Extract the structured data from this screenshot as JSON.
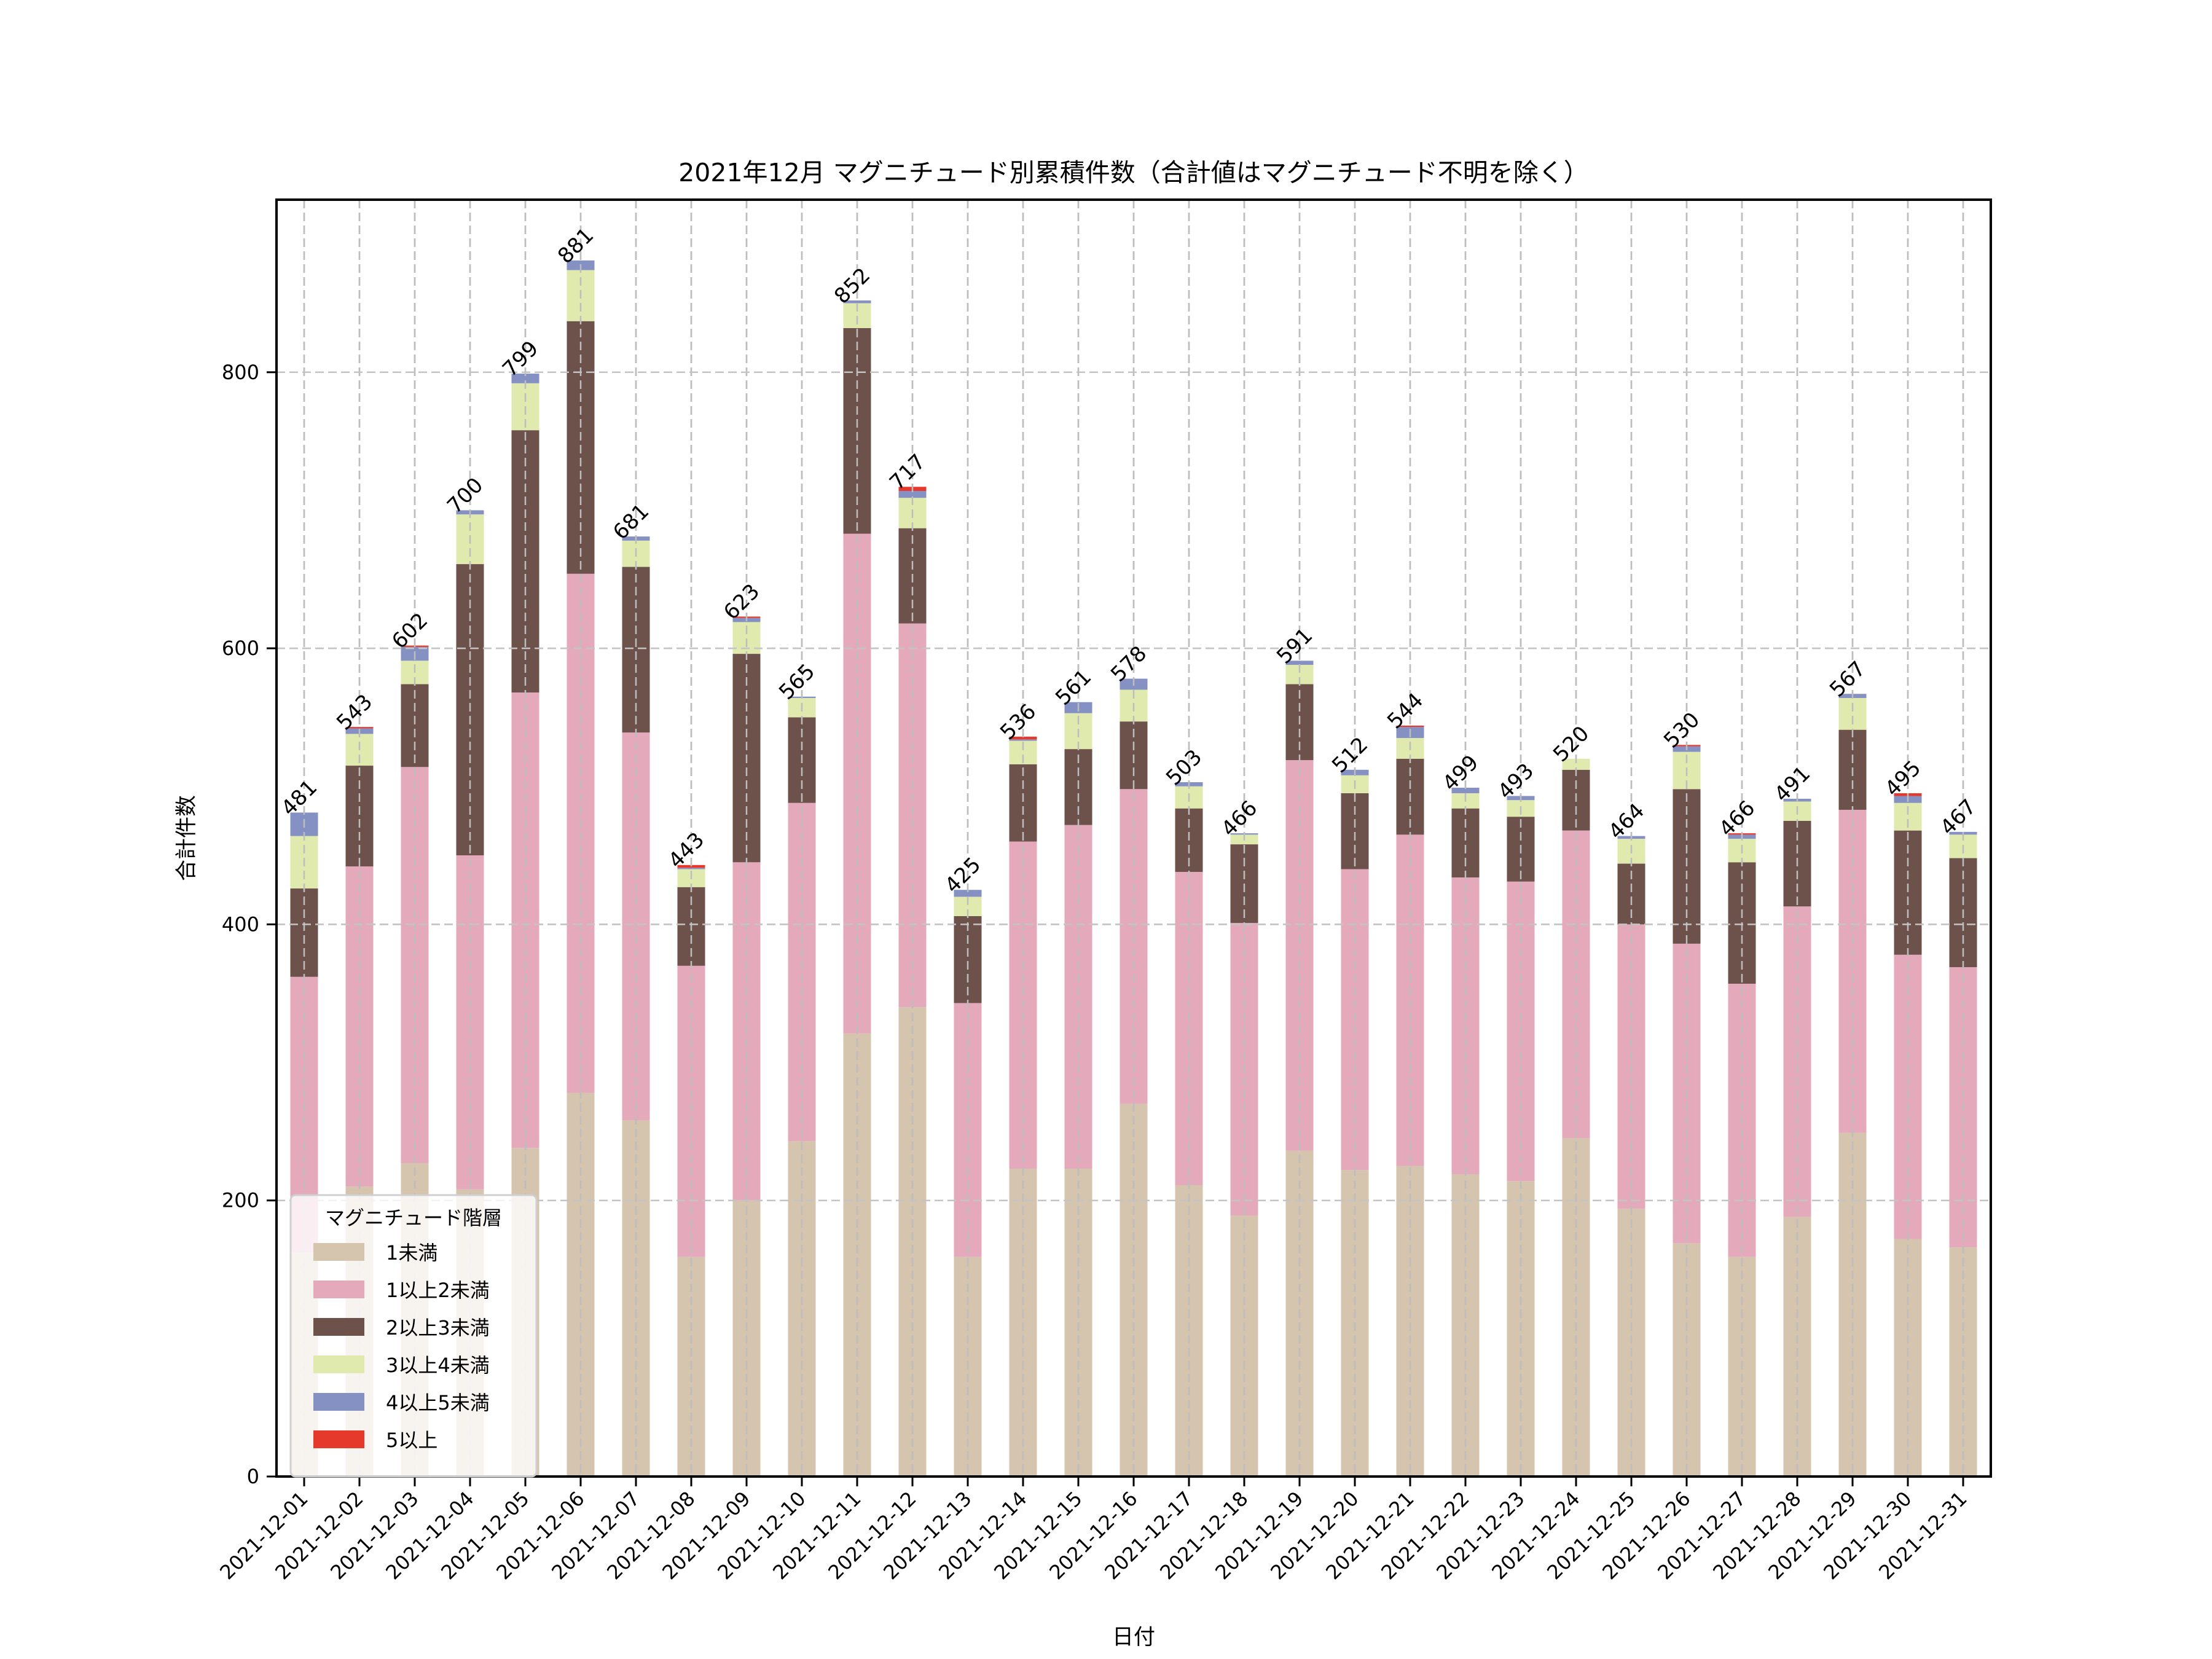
{
  "chart_data": {
    "type": "bar",
    "stacked": true,
    "title": "2021年12月 マグニチュード別累積件数（合計値はマグニチュード不明を除く）",
    "xlabel": "日付",
    "ylabel": "合計件数",
    "ylim": [
      0,
      925
    ],
    "yticks": [
      0,
      200,
      400,
      600,
      800
    ],
    "grid": true,
    "legend": {
      "title": "マグニチュード階層",
      "placement": "lower-left"
    },
    "categories": [
      "2021-12-01",
      "2021-12-02",
      "2021-12-03",
      "2021-12-04",
      "2021-12-05",
      "2021-12-06",
      "2021-12-07",
      "2021-12-08",
      "2021-12-09",
      "2021-12-10",
      "2021-12-11",
      "2021-12-12",
      "2021-12-13",
      "2021-12-14",
      "2021-12-15",
      "2021-12-16",
      "2021-12-17",
      "2021-12-18",
      "2021-12-19",
      "2021-12-20",
      "2021-12-21",
      "2021-12-22",
      "2021-12-23",
      "2021-12-24",
      "2021-12-25",
      "2021-12-26",
      "2021-12-27",
      "2021-12-28",
      "2021-12-29",
      "2021-12-30",
      "2021-12-31"
    ],
    "series": [
      {
        "name": "1未満",
        "color": "#d5c4ae",
        "values": [
          162,
          210,
          227,
          208,
          238,
          278,
          258,
          159,
          200,
          243,
          321,
          340,
          159,
          223,
          223,
          270,
          211,
          189,
          236,
          222,
          225,
          219,
          214,
          245,
          194,
          169,
          159,
          188,
          249,
          172,
          166
        ]
      },
      {
        "name": "1以上2未満",
        "color": "#e4aabc",
        "values": [
          200,
          232,
          287,
          242,
          330,
          376,
          281,
          211,
          245,
          245,
          362,
          278,
          184,
          237,
          249,
          228,
          227,
          212,
          283,
          218,
          240,
          215,
          217,
          223,
          206,
          217,
          198,
          225,
          234,
          206,
          203
        ]
      },
      {
        "name": "2以上3未満",
        "color": "#6d514b",
        "values": [
          64,
          73,
          60,
          211,
          190,
          183,
          120,
          57,
          151,
          62,
          149,
          69,
          63,
          56,
          55,
          49,
          46,
          57,
          55,
          55,
          55,
          50,
          47,
          44,
          44,
          112,
          88,
          62,
          58,
          90,
          79
        ]
      },
      {
        "name": "3以上4未満",
        "color": "#e0eaaf",
        "values": [
          38,
          23,
          17,
          36,
          34,
          37,
          19,
          13,
          23,
          14,
          18,
          22,
          14,
          17,
          26,
          23,
          16,
          7,
          14,
          13,
          15,
          11,
          12,
          8,
          18,
          27,
          17,
          14,
          23,
          20,
          17
        ]
      },
      {
        "name": "4以上5未満",
        "color": "#8591c3",
        "values": [
          17,
          4,
          10,
          3,
          7,
          7,
          3,
          1,
          3,
          1,
          2,
          5,
          5,
          1,
          8,
          8,
          3,
          1,
          3,
          4,
          8,
          4,
          3,
          0,
          2,
          4,
          3,
          2,
          3,
          5,
          2
        ]
      },
      {
        "name": "5以上",
        "color": "#e5392b",
        "values": [
          0,
          1,
          1,
          0,
          0,
          0,
          0,
          2,
          1,
          0,
          0,
          3,
          0,
          2,
          0,
          0,
          0,
          0,
          0,
          0,
          1,
          0,
          0,
          0,
          0,
          1,
          1,
          0,
          0,
          2,
          0
        ]
      }
    ],
    "totals": [
      481,
      543,
      602,
      700,
      799,
      881,
      681,
      443,
      623,
      565,
      852,
      717,
      425,
      536,
      561,
      578,
      503,
      466,
      591,
      512,
      544,
      499,
      493,
      520,
      464,
      530,
      466,
      491,
      567,
      495,
      467
    ]
  }
}
